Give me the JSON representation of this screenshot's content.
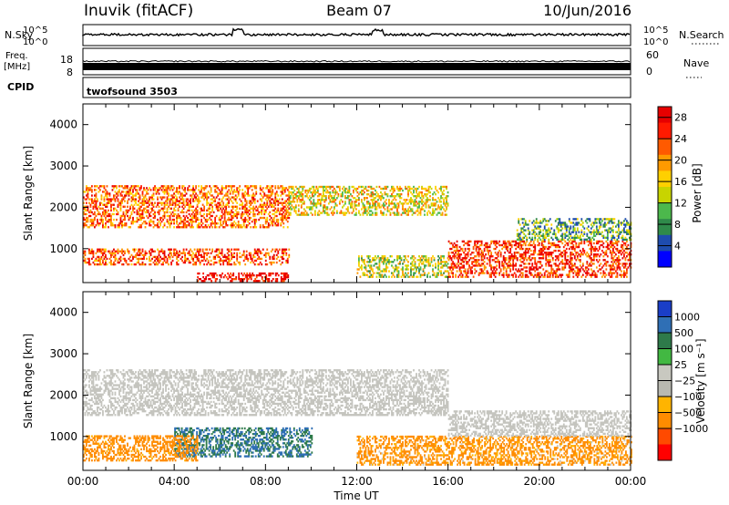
{
  "header": {
    "station": "Inuvik (fitACF)",
    "beam": "Beam 07",
    "date": "10/Jun/2016"
  },
  "noise_panel": {
    "left_label": "N.Sky",
    "right_label": "N.Search",
    "left_ticks": [
      "10^5",
      "10^0"
    ],
    "right_ticks": [
      "10^5",
      "10^0"
    ]
  },
  "freq_panel": {
    "left_label_line1": "Freq.",
    "left_label_line2": "[MHz]",
    "right_label": "Nave",
    "left_ticks": [
      "18",
      "8"
    ],
    "right_ticks": [
      "60",
      "0"
    ]
  },
  "cpid": {
    "label": "CPID",
    "program": "twofsound 3503"
  },
  "colors": {
    "power_scale": [
      "#0000ff",
      "#1e4cae",
      "#2f8a4a",
      "#4cb84c",
      "#c8d400",
      "#ffd000",
      "#ff9a00",
      "#ff5a00",
      "#ff1a00",
      "#e60000"
    ],
    "velocity_scale": [
      "#1a3ec8",
      "#2f6fb5",
      "#2e7a4a",
      "#42b842",
      "#c8c8c0",
      "#b9b9b0",
      "#ffb400",
      "#ff8c00",
      "#ff4a00",
      "#ff0000"
    ],
    "ground_scatter": "#c4c4be"
  },
  "chart_data": [
    {
      "type": "heatmap",
      "title": "Power",
      "ylabel": "Slant Range [km]",
      "xlabel": "",
      "ylim": [
        180,
        4500
      ],
      "xlim": [
        0,
        24
      ],
      "y_ticks": [
        "1000",
        "2000",
        "3000",
        "4000"
      ],
      "x_ticks": [
        "00:00",
        "04:00",
        "08:00",
        "12:00",
        "16:00",
        "20:00",
        "00:00"
      ],
      "colorbar_label": "Power [dB]",
      "colorbar_ticks": [
        "4",
        "8",
        "12",
        "16",
        "20",
        "24",
        "28"
      ],
      "colorbar_range": [
        0,
        30
      ],
      "echo_bands": [
        {
          "t_start": 0,
          "t_end": 9,
          "r_low": 1500,
          "r_high": 2500,
          "power": 22
        },
        {
          "t_start": 0,
          "t_end": 9,
          "r_low": 600,
          "r_high": 1000,
          "power": 24
        },
        {
          "t_start": 5,
          "t_end": 9,
          "r_low": 200,
          "r_high": 400,
          "power": 28
        },
        {
          "t_start": 9,
          "t_end": 16,
          "r_low": 1800,
          "r_high": 2500,
          "power": 16
        },
        {
          "t_start": 12,
          "t_end": 16,
          "r_low": 300,
          "r_high": 800,
          "power": 14
        },
        {
          "t_start": 16,
          "t_end": 24,
          "r_low": 300,
          "r_high": 1200,
          "power": 25
        },
        {
          "t_start": 19,
          "t_end": 24,
          "r_low": 1200,
          "r_high": 1700,
          "power": 10
        }
      ]
    },
    {
      "type": "heatmap",
      "title": "Velocity",
      "ylabel": "Slant Range [km]",
      "xlabel": "Time UT",
      "ylim": [
        180,
        4500
      ],
      "xlim": [
        0,
        24
      ],
      "y_ticks": [
        "1000",
        "2000",
        "3000",
        "4000"
      ],
      "x_ticks": [
        "00:00",
        "04:00",
        "08:00",
        "12:00",
        "16:00",
        "20:00",
        "00:00"
      ],
      "colorbar_label": "Velocity [m s⁻¹]",
      "colorbar_ticks": [
        "1000",
        "500",
        "100",
        "25",
        "−25",
        "−100",
        "−500",
        "−1000"
      ],
      "echo_bands": [
        {
          "t_start": 0,
          "t_end": 16,
          "r_low": 1500,
          "r_high": 2600,
          "velocity": 0,
          "ground_scatter": true
        },
        {
          "t_start": 4,
          "t_end": 10,
          "r_low": 500,
          "r_high": 1200,
          "velocity": 300
        },
        {
          "t_start": 0,
          "t_end": 5,
          "r_low": 400,
          "r_high": 1000,
          "velocity": -150
        },
        {
          "t_start": 12,
          "t_end": 24,
          "r_low": 300,
          "r_high": 1000,
          "velocity": -100
        },
        {
          "t_start": 16,
          "t_end": 24,
          "r_low": 1000,
          "r_high": 1600,
          "velocity": 0,
          "ground_scatter": true
        }
      ]
    }
  ]
}
